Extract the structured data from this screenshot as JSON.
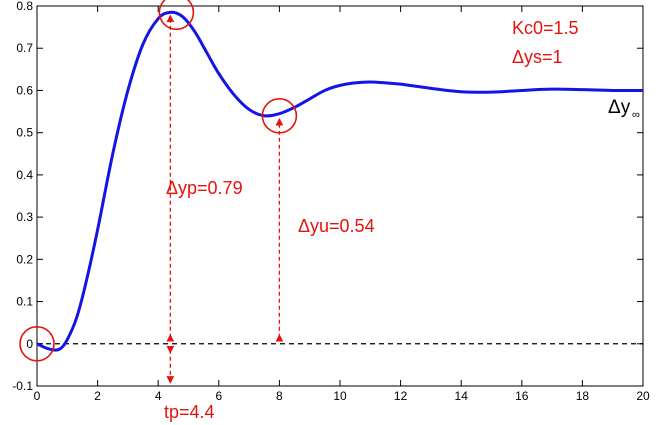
{
  "chart_data": {
    "type": "line",
    "xlim": [
      0,
      20
    ],
    "ylim": [
      -0.1,
      0.8
    ],
    "x_ticks": [
      0,
      2,
      4,
      6,
      8,
      10,
      12,
      14,
      16,
      18,
      20
    ],
    "y_ticks": [
      -0.1,
      0,
      0.1,
      0.2,
      0.3,
      0.4,
      0.5,
      0.6,
      0.7,
      0.8
    ],
    "x_tick_labels": [
      "0",
      "2",
      "4",
      "6",
      "8",
      "10",
      "12",
      "14",
      "16",
      "18",
      "20"
    ],
    "y_tick_labels": [
      "-0.1",
      "0",
      "0.1",
      "0.2",
      "0.3",
      "0.4",
      "0.5",
      "0.6",
      "0.7",
      "0.8"
    ],
    "grid": false,
    "series": [
      {
        "color": "#1414e6",
        "x": [
          0,
          0.3,
          0.6,
          0.8,
          1.0,
          1.3,
          1.6,
          2.0,
          2.5,
          3.0,
          3.5,
          4.0,
          4.4,
          4.8,
          5.2,
          5.6,
          6.0,
          6.5,
          7.0,
          7.5,
          8.0,
          8.5,
          9.0,
          9.5,
          10.0,
          10.5,
          11.0,
          11.5,
          12.0,
          13.0,
          14.0,
          15.0,
          16.0,
          17.0,
          18.0,
          19.0,
          20.0
        ],
        "y": [
          0,
          -0.01,
          -0.015,
          -0.01,
          0.01,
          0.06,
          0.14,
          0.27,
          0.45,
          0.6,
          0.71,
          0.77,
          0.785,
          0.775,
          0.74,
          0.69,
          0.64,
          0.59,
          0.555,
          0.54,
          0.545,
          0.56,
          0.58,
          0.6,
          0.612,
          0.618,
          0.62,
          0.618,
          0.615,
          0.605,
          0.597,
          0.596,
          0.6,
          0.603,
          0.602,
          0.6,
          0.6
        ]
      }
    ],
    "baseline": {
      "y": 0,
      "color": "#000000",
      "dashed": true
    },
    "circles": [
      {
        "x": 0,
        "y": 0
      },
      {
        "x": 4.6,
        "y": 0.785
      },
      {
        "x": 8.0,
        "y": 0.54
      }
    ],
    "guide_lines": [
      {
        "x": 4.4,
        "y_from": 0,
        "y_to": 0.785,
        "label": "Δyp=0.79"
      },
      {
        "x": 8.0,
        "y_from": 0,
        "y_to": 0.54,
        "label": "Δyu=0.54"
      },
      {
        "x": 4.4,
        "y_from": 0,
        "y_to": -0.1,
        "label": "tp=4.4"
      }
    ],
    "annotations": {
      "kc0": "Kc0=1.5",
      "dys": "Δys=1",
      "dyp": "Δyp=0.79",
      "dyu": "Δyu=0.54",
      "tp": "tp=4.4",
      "yinf_main": "Δy",
      "yinf_sub": "∞"
    },
    "colors": {
      "curve": "#1414e6",
      "annotation": "#e8120c",
      "axis": "#000000"
    }
  }
}
